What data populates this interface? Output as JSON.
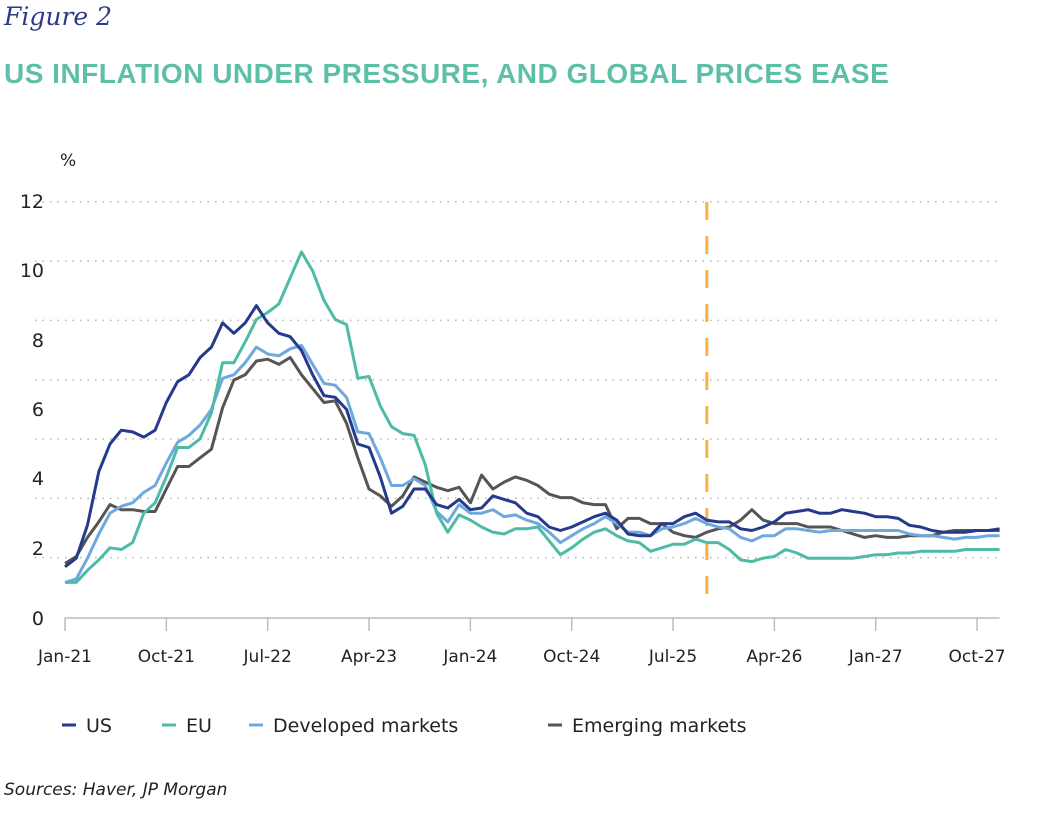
{
  "header": {
    "figure_label": "Figure 2",
    "title": "US INFLATION UNDER PRESSURE, AND GLOBAL PRICES EASE"
  },
  "footer": {
    "sources": "Sources: Haver, JP Morgan"
  },
  "chart_data": {
    "type": "line",
    "title": "US INFLATION UNDER PRESSURE, AND GLOBAL PRICES EASE",
    "ylabel": "%",
    "xlabel": "",
    "ylim": [
      0,
      12
    ],
    "yticks": [
      "0",
      "2",
      "4",
      "6",
      "8",
      "10",
      "12"
    ],
    "x_start": "Jan-21",
    "x_end": "Dec-27",
    "x_frequency": "monthly",
    "xticks": [
      "Jan-21",
      "Oct-21",
      "Jul-22",
      "Apr-23",
      "Jan-24",
      "Oct-24",
      "Jul-25",
      "Apr-26",
      "Jan-27",
      "Oct-27"
    ],
    "grid": "horizontal dotted",
    "legend": "bottom",
    "vline": {
      "x": "Oct-25",
      "color": "#fbb040",
      "style": "dashed"
    },
    "series": [
      {
        "name": "US",
        "color": "#253a8c",
        "values": [
          1.45,
          1.7,
          2.66,
          4.2,
          5.0,
          5.4,
          5.35,
          5.2,
          5.4,
          6.2,
          6.8,
          7.0,
          7.5,
          7.8,
          8.5,
          8.2,
          8.5,
          9.0,
          8.5,
          8.2,
          8.1,
          7.7,
          7.0,
          6.4,
          6.35,
          6.0,
          5.0,
          4.9,
          4.05,
          3.0,
          3.2,
          3.7,
          3.7,
          3.25,
          3.15,
          3.4,
          3.1,
          3.15,
          3.5,
          3.4,
          3.3,
          3.0,
          2.9,
          2.6,
          2.5,
          2.6,
          2.75,
          2.9,
          3.0,
          2.8,
          2.4,
          2.35,
          2.35,
          2.7,
          2.7,
          2.9,
          3.0,
          2.8,
          2.75,
          2.75,
          2.55,
          2.5,
          2.6,
          2.75,
          3.0,
          3.05,
          3.1,
          3.0,
          3.0,
          3.1,
          3.05,
          3.0,
          2.9,
          2.9,
          2.85,
          2.65,
          2.6,
          2.5,
          2.45,
          2.45,
          2.45,
          2.5,
          2.5,
          2.55
        ]
      },
      {
        "name": "EU",
        "color": "#4dbba6",
        "values": [
          1.0,
          1.0,
          1.35,
          1.65,
          2.0,
          1.95,
          2.15,
          3.0,
          3.3,
          4.05,
          4.9,
          4.9,
          5.15,
          5.9,
          7.35,
          7.35,
          7.95,
          8.6,
          8.8,
          9.05,
          9.8,
          10.55,
          10.0,
          9.15,
          8.6,
          8.45,
          6.9,
          6.95,
          6.1,
          5.5,
          5.3,
          5.25,
          4.4,
          3.0,
          2.45,
          2.95,
          2.8,
          2.6,
          2.45,
          2.4,
          2.55,
          2.55,
          2.6,
          2.2,
          1.8,
          2.0,
          2.25,
          2.45,
          2.55,
          2.35,
          2.2,
          2.15,
          1.9,
          2.0,
          2.1,
          2.1,
          2.25,
          2.15,
          2.15,
          1.95,
          1.65,
          1.6,
          1.7,
          1.75,
          1.95,
          1.85,
          1.7,
          1.7,
          1.7,
          1.7,
          1.7,
          1.75,
          1.8,
          1.8,
          1.85,
          1.85,
          1.9,
          1.9,
          1.9,
          1.9,
          1.95,
          1.95,
          1.95,
          1.95
        ]
      },
      {
        "name": "Developed markets",
        "color": "#6fa8dc",
        "values": [
          1.0,
          1.1,
          1.7,
          2.4,
          3.0,
          3.2,
          3.3,
          3.6,
          3.8,
          4.45,
          5.05,
          5.25,
          5.55,
          6.0,
          6.9,
          7.0,
          7.35,
          7.8,
          7.6,
          7.55,
          7.75,
          7.85,
          7.3,
          6.75,
          6.7,
          6.35,
          5.35,
          5.3,
          4.6,
          3.8,
          3.8,
          4.0,
          3.8,
          3.05,
          2.75,
          3.25,
          3.0,
          3.0,
          3.1,
          2.9,
          2.95,
          2.8,
          2.7,
          2.45,
          2.15,
          2.35,
          2.55,
          2.7,
          2.9,
          2.7,
          2.45,
          2.45,
          2.35,
          2.55,
          2.6,
          2.7,
          2.85,
          2.7,
          2.6,
          2.55,
          2.3,
          2.2,
          2.35,
          2.35,
          2.55,
          2.55,
          2.5,
          2.45,
          2.5,
          2.5,
          2.5,
          2.5,
          2.5,
          2.5,
          2.5,
          2.4,
          2.35,
          2.35,
          2.3,
          2.25,
          2.3,
          2.3,
          2.35,
          2.35
        ]
      },
      {
        "name": "Emerging markets",
        "color": "#555555",
        "values": [
          1.55,
          1.75,
          2.3,
          2.75,
          3.25,
          3.1,
          3.1,
          3.05,
          3.05,
          3.7,
          4.35,
          4.35,
          4.6,
          4.85,
          6.05,
          6.85,
          7.0,
          7.4,
          7.45,
          7.3,
          7.5,
          7.0,
          6.6,
          6.2,
          6.25,
          5.6,
          4.6,
          3.7,
          3.5,
          3.2,
          3.5,
          4.05,
          3.9,
          3.75,
          3.65,
          3.75,
          3.3,
          4.1,
          3.7,
          3.9,
          4.05,
          3.95,
          3.8,
          3.55,
          3.45,
          3.45,
          3.3,
          3.25,
          3.25,
          2.55,
          2.85,
          2.85,
          2.7,
          2.7,
          2.45,
          2.35,
          2.3,
          2.45,
          2.55,
          2.6,
          2.8,
          3.1,
          2.8,
          2.7,
          2.7,
          2.7,
          2.6,
          2.6,
          2.6,
          2.5,
          2.4,
          2.3,
          2.35,
          2.3,
          2.3,
          2.35,
          2.35,
          2.35,
          2.45,
          2.5,
          2.5,
          2.5,
          2.5,
          2.5
        ]
      }
    ]
  }
}
